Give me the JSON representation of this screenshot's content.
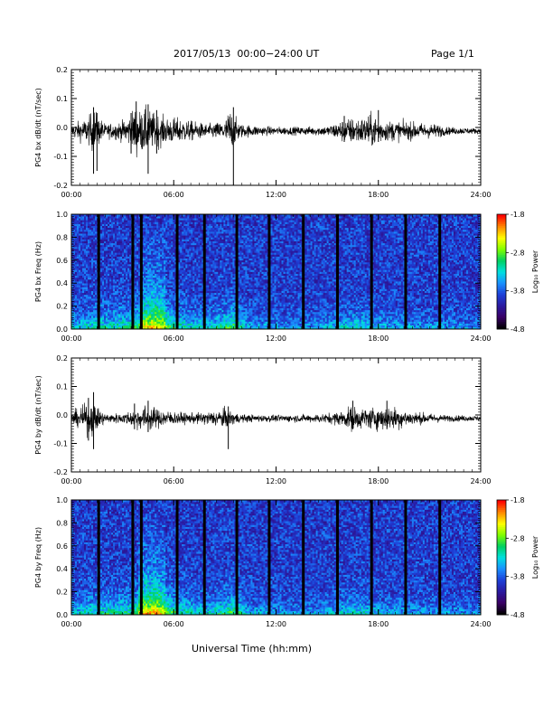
{
  "header": {
    "title": "2017/05/13  00:00−24:00 UT",
    "page": "Page 1/1"
  },
  "footer": {
    "xlabel": "Universal Time (hh:mm)"
  },
  "colorbar": {
    "label": "Log₁₀ Power",
    "ticks": [
      "-1.8",
      "-2.8",
      "-3.8",
      "-4.8"
    ],
    "colors": [
      "#000000",
      "#3a0066",
      "#2a1aa0",
      "#1e40d8",
      "#1a90ff",
      "#00e0e0",
      "#00d060",
      "#80ff00",
      "#ffff00",
      "#ff8800",
      "#ff0000"
    ]
  },
  "chart_data": [
    {
      "type": "line",
      "name": "PG4 bx dB/dt",
      "ylabel": "PG4 bx dB/dt (nT/sec)",
      "ylim": [
        -0.2,
        0.2
      ],
      "yticks": [
        "-0.2",
        "-0.1",
        "0.0",
        "0.1",
        "0.2"
      ],
      "xticks": [
        "00:00",
        "06:00",
        "12:00",
        "18:00",
        "24:00"
      ],
      "xlim": [
        "00:00",
        "24:00"
      ],
      "envelope": [
        [
          0.0,
          0.02
        ],
        [
          0.5,
          0.03
        ],
        [
          1.0,
          0.04
        ],
        [
          1.3,
          0.07
        ],
        [
          1.5,
          0.05
        ],
        [
          2.0,
          0.02
        ],
        [
          3.0,
          0.03
        ],
        [
          3.5,
          0.05
        ],
        [
          3.8,
          0.08
        ],
        [
          4.0,
          0.06
        ],
        [
          4.3,
          0.07
        ],
        [
          4.6,
          0.06
        ],
        [
          5.0,
          0.05
        ],
        [
          5.5,
          0.04
        ],
        [
          6.0,
          0.04
        ],
        [
          7.0,
          0.03
        ],
        [
          8.0,
          0.02
        ],
        [
          9.0,
          0.03
        ],
        [
          9.3,
          0.07
        ],
        [
          9.6,
          0.04
        ],
        [
          10.0,
          0.02
        ],
        [
          11.0,
          0.015
        ],
        [
          12.0,
          0.012
        ],
        [
          13.0,
          0.012
        ],
        [
          14.0,
          0.013
        ],
        [
          15.0,
          0.015
        ],
        [
          15.5,
          0.025
        ],
        [
          16.0,
          0.035
        ],
        [
          16.5,
          0.04
        ],
        [
          17.0,
          0.04
        ],
        [
          17.5,
          0.05
        ],
        [
          18.0,
          0.04
        ],
        [
          18.5,
          0.03
        ],
        [
          19.0,
          0.03
        ],
        [
          21.5,
          0.02
        ],
        [
          22.0,
          0.012
        ],
        [
          24.0,
          0.008
        ]
      ],
      "spikes": [
        [
          1.3,
          0.07,
          -0.16
        ],
        [
          1.5,
          0.05,
          -0.15
        ],
        [
          3.5,
          0.05,
          -0.09
        ],
        [
          3.8,
          0.09,
          -0.06
        ],
        [
          4.5,
          0.08,
          -0.16
        ],
        [
          5.0,
          0.06,
          -0.09
        ],
        [
          9.5,
          0.07,
          -0.2
        ],
        [
          16.0,
          0.04,
          -0.05
        ],
        [
          18.0,
          0.06,
          -0.05
        ]
      ]
    },
    {
      "type": "heatmap",
      "name": "PG4 bx spectrogram",
      "ylabel": "PG4 bx Freq (Hz)",
      "ylim": [
        0.0,
        1.0
      ],
      "yticks": [
        "0.0",
        "0.2",
        "0.4",
        "0.6",
        "0.8",
        "1.0"
      ],
      "xticks": [
        "00:00",
        "06:00",
        "12:00",
        "18:00",
        "24:00"
      ],
      "xlim": [
        "00:00",
        "24:00"
      ],
      "zlim": [
        -4.8,
        -1.8
      ],
      "data_gaps_hours": [
        1.6,
        3.6,
        4.1,
        6.2,
        7.8,
        9.7,
        11.6,
        13.6,
        15.6,
        17.6,
        19.6,
        21.6
      ],
      "activity": [
        [
          0.0,
          0.4
        ],
        [
          1.0,
          0.5
        ],
        [
          3.5,
          0.6
        ],
        [
          4.2,
          0.85
        ],
        [
          5.0,
          0.95
        ],
        [
          5.5,
          0.8
        ],
        [
          6.5,
          0.55
        ],
        [
          8.0,
          0.45
        ],
        [
          9.5,
          0.7
        ],
        [
          10.5,
          0.35
        ],
        [
          12.0,
          0.3
        ],
        [
          14.0,
          0.3
        ],
        [
          16.0,
          0.45
        ],
        [
          17.0,
          0.5
        ],
        [
          18.5,
          0.35
        ],
        [
          21.5,
          0.3
        ],
        [
          24.0,
          0.25
        ]
      ]
    },
    {
      "type": "line",
      "name": "PG4 by dB/dt",
      "ylabel": "PG4 by dB/dt (nT/sec)",
      "ylim": [
        -0.2,
        0.2
      ],
      "yticks": [
        "-0.2",
        "-0.1",
        "0.0",
        "0.1",
        "0.2"
      ],
      "xticks": [
        "00:00",
        "06:00",
        "12:00",
        "18:00",
        "24:00"
      ],
      "xlim": [
        "00:00",
        "24:00"
      ],
      "envelope": [
        [
          0.0,
          0.02
        ],
        [
          0.5,
          0.03
        ],
        [
          1.0,
          0.05
        ],
        [
          1.3,
          0.05
        ],
        [
          1.6,
          0.03
        ],
        [
          2.0,
          0.015
        ],
        [
          3.0,
          0.015
        ],
        [
          3.8,
          0.03
        ],
        [
          4.4,
          0.04
        ],
        [
          5.0,
          0.03
        ],
        [
          6.0,
          0.02
        ],
        [
          7.0,
          0.015
        ],
        [
          8.0,
          0.02
        ],
        [
          9.0,
          0.03
        ],
        [
          9.5,
          0.02
        ],
        [
          10.0,
          0.012
        ],
        [
          12.0,
          0.01
        ],
        [
          14.0,
          0.012
        ],
        [
          15.0,
          0.015
        ],
        [
          16.0,
          0.025
        ],
        [
          16.5,
          0.04
        ],
        [
          17.0,
          0.03
        ],
        [
          18.0,
          0.035
        ],
        [
          19.0,
          0.035
        ],
        [
          20.0,
          0.02
        ],
        [
          22.0,
          0.01
        ],
        [
          24.0,
          0.008
        ]
      ],
      "spikes": [
        [
          1.0,
          0.06,
          -0.09
        ],
        [
          1.3,
          0.08,
          -0.12
        ],
        [
          3.7,
          0.04,
          -0.05
        ],
        [
          4.5,
          0.05,
          -0.06
        ],
        [
          9.2,
          0.03,
          -0.12
        ],
        [
          16.5,
          0.05,
          -0.05
        ],
        [
          18.5,
          0.05,
          -0.05
        ]
      ]
    },
    {
      "type": "heatmap",
      "name": "PG4 by spectrogram",
      "ylabel": "PG4 by Freq (Hz)",
      "ylim": [
        0.0,
        1.0
      ],
      "yticks": [
        "0.0",
        "0.2",
        "0.4",
        "0.6",
        "0.8",
        "1.0"
      ],
      "xticks": [
        "00:00",
        "06:00",
        "12:00",
        "18:00",
        "24:00"
      ],
      "xlim": [
        "00:00",
        "24:00"
      ],
      "zlim": [
        -4.8,
        -1.8
      ],
      "data_gaps_hours": [
        1.6,
        3.6,
        4.1,
        6.2,
        7.8,
        9.7,
        11.6,
        13.6,
        15.6,
        17.6,
        19.6,
        21.6
      ],
      "activity": [
        [
          0.0,
          0.4
        ],
        [
          1.0,
          0.5
        ],
        [
          3.5,
          0.6
        ],
        [
          4.2,
          0.9
        ],
        [
          5.0,
          0.95
        ],
        [
          5.5,
          0.8
        ],
        [
          6.5,
          0.55
        ],
        [
          8.0,
          0.45
        ],
        [
          9.5,
          0.7
        ],
        [
          10.5,
          0.35
        ],
        [
          12.0,
          0.3
        ],
        [
          14.0,
          0.3
        ],
        [
          16.0,
          0.45
        ],
        [
          17.0,
          0.5
        ],
        [
          18.5,
          0.35
        ],
        [
          21.5,
          0.3
        ],
        [
          24.0,
          0.25
        ]
      ]
    }
  ]
}
